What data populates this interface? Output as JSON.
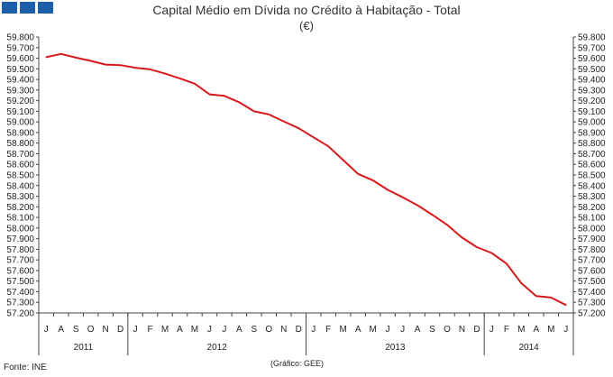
{
  "header": {
    "logo_name": "ine-logo-blocks"
  },
  "footer": {
    "source": "Fonte: INE",
    "credit": "(Gráfico: GEE)"
  },
  "chart_data": {
    "type": "line",
    "title": "Capital Médio em Dívida no Crédito à Habitação - Total",
    "subtitle": "(€)",
    "xlabel": "",
    "ylabel": "",
    "ylim": [
      57200,
      59800
    ],
    "yticks": [
      59800,
      59700,
      59600,
      59500,
      59400,
      59300,
      59200,
      59100,
      59000,
      58900,
      58800,
      58700,
      58600,
      58500,
      58400,
      58300,
      58200,
      58100,
      58000,
      57900,
      57800,
      57700,
      57600,
      57500,
      57400,
      57300,
      57200
    ],
    "ytick_labels": [
      "59.800",
      "59.700",
      "59.600",
      "59.500",
      "59.400",
      "59.300",
      "59.200",
      "59.100",
      "59.000",
      "58.900",
      "58.800",
      "58.700",
      "58.600",
      "58.500",
      "58.400",
      "58.300",
      "58.200",
      "58.100",
      "58.000",
      "57.900",
      "57.800",
      "57.700",
      "57.600",
      "57.500",
      "57.400",
      "57.300",
      "57.200"
    ],
    "months": [
      "J",
      "A",
      "S",
      "O",
      "N",
      "D",
      "J",
      "F",
      "M",
      "A",
      "M",
      "J",
      "J",
      "A",
      "S",
      "O",
      "N",
      "D",
      "J",
      "F",
      "M",
      "A",
      "M",
      "J",
      "J",
      "A",
      "S",
      "O",
      "N",
      "D",
      "J",
      "F",
      "M",
      "A",
      "M",
      "J"
    ],
    "years": [
      {
        "label": "2011",
        "start": 0,
        "end": 6
      },
      {
        "label": "2012",
        "start": 6,
        "end": 18
      },
      {
        "label": "2013",
        "start": 18,
        "end": 30
      },
      {
        "label": "2014",
        "start": 30,
        "end": 36
      }
    ],
    "series": [
      {
        "name": "Capital Médio em Dívida",
        "color": "#d7191c",
        "values": [
          59610,
          59640,
          59605,
          59575,
          59540,
          59535,
          59510,
          59495,
          59455,
          59410,
          59360,
          59260,
          59245,
          59185,
          59100,
          59070,
          59005,
          58940,
          58855,
          58770,
          58640,
          58510,
          58450,
          58360,
          58290,
          58215,
          58125,
          58030,
          57910,
          57820,
          57765,
          57665,
          57480,
          57360,
          57345,
          57275
        ]
      }
    ]
  }
}
